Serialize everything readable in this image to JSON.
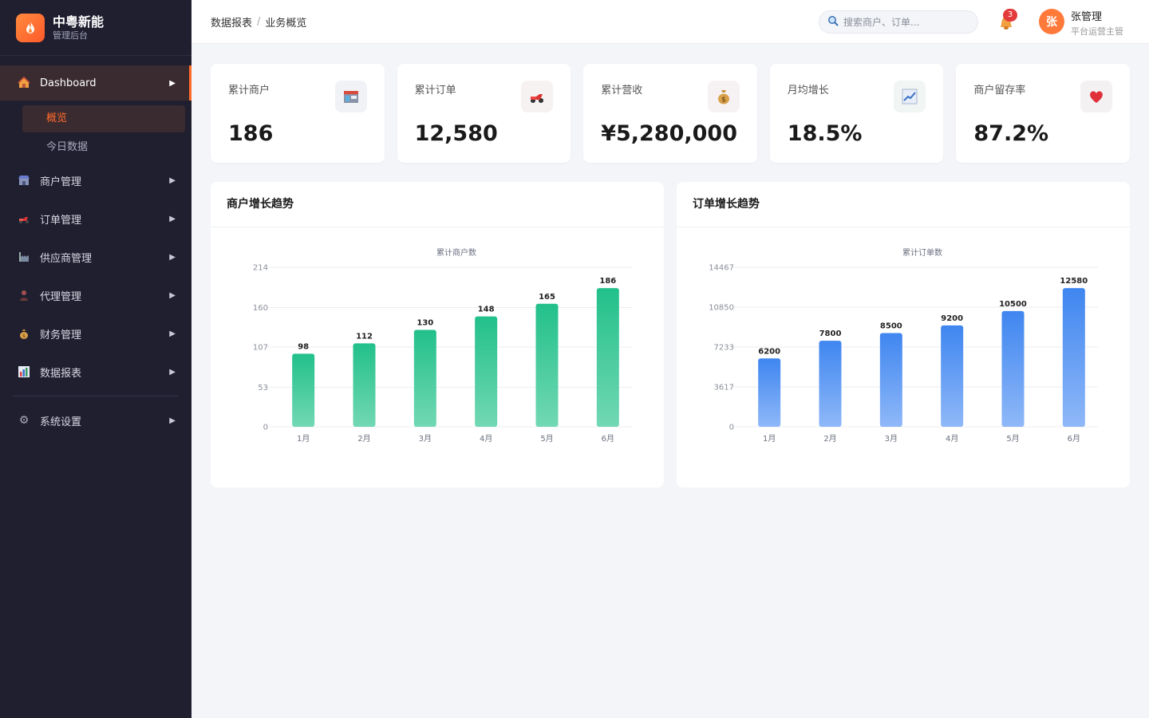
{
  "brand": {
    "title": "中粤新能",
    "subtitle": "管理后台"
  },
  "sidebar": {
    "items": [
      {
        "label": "Dashboard",
        "icon": "house-icon",
        "active": true,
        "children": [
          {
            "label": "概览",
            "active": true
          },
          {
            "label": "今日数据",
            "active": false
          }
        ]
      },
      {
        "label": "商户管理",
        "icon": "shop-icon"
      },
      {
        "label": "订单管理",
        "icon": "scooter-icon"
      },
      {
        "label": "供应商管理",
        "icon": "factory-icon"
      },
      {
        "label": "代理管理",
        "icon": "person-icon"
      },
      {
        "label": "财务管理",
        "icon": "money-bag-icon"
      },
      {
        "label": "数据报表",
        "icon": "bar-chart-icon"
      }
    ],
    "settings": {
      "label": "系统设置",
      "icon": "gear-icon"
    }
  },
  "header": {
    "breadcrumb": [
      "数据报表",
      "业务概览"
    ],
    "search_placeholder": "搜索商户、订单...",
    "notification_count": "3",
    "user": {
      "avatar_text": "张",
      "name": "张管理",
      "role": "平台运营主管"
    }
  },
  "stats": [
    {
      "label": "累计商户",
      "value": "186",
      "icon": "store-icon"
    },
    {
      "label": "累计订单",
      "value": "12,580",
      "icon": "scooter-icon"
    },
    {
      "label": "累计营收",
      "value": "¥5,280,000",
      "icon": "money-bag-icon"
    },
    {
      "label": "月均增长",
      "value": "18.5%",
      "icon": "trend-up-icon"
    },
    {
      "label": "商户留存率",
      "value": "87.2%",
      "icon": "heart-icon"
    }
  ],
  "charts": {
    "merchant_title": "商户增长趋势",
    "order_title": "订单增长趋势"
  },
  "chart_data": [
    {
      "type": "bar",
      "title": "累计商户数",
      "categories": [
        "1月",
        "2月",
        "3月",
        "4月",
        "5月",
        "6月"
      ],
      "values": [
        98,
        112,
        130,
        148,
        165,
        186
      ],
      "yticks": [
        0,
        53,
        107,
        160,
        214
      ],
      "ylim": [
        0,
        214
      ],
      "color_top": "#22c08a",
      "color_bottom": "#72d8b4",
      "grid": true
    },
    {
      "type": "bar",
      "title": "累计订单数",
      "categories": [
        "1月",
        "2月",
        "3月",
        "4月",
        "5月",
        "6月"
      ],
      "values": [
        6200,
        7800,
        8500,
        9200,
        10500,
        12580
      ],
      "yticks": [
        0,
        3617,
        7233,
        10850,
        14467
      ],
      "ylim": [
        0,
        14467
      ],
      "color_top": "#3f86f0",
      "color_bottom": "#8fb8f8",
      "grid": true
    }
  ]
}
